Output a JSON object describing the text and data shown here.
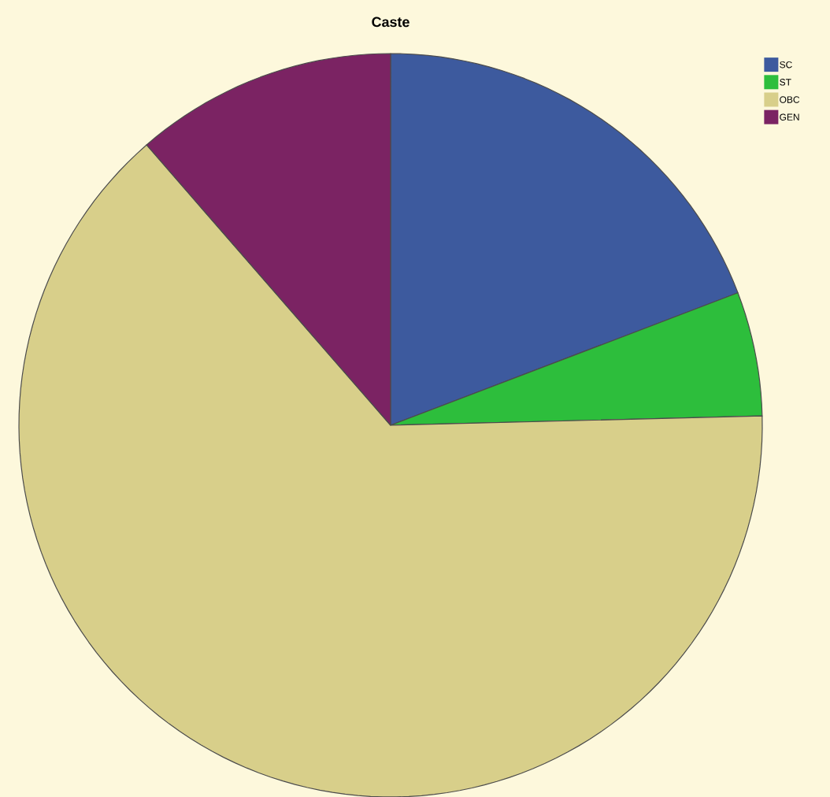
{
  "chart_data": {
    "type": "pie",
    "title": "Caste",
    "categories": [
      "SC",
      "ST",
      "OBC",
      "GEN"
    ],
    "values": [
      19.2,
      5.4,
      64.0,
      11.4
    ],
    "colors": [
      "#3d5a9e",
      "#2dbe3c",
      "#d8cf8a",
      "#7b2363"
    ],
    "legend": "top right"
  }
}
